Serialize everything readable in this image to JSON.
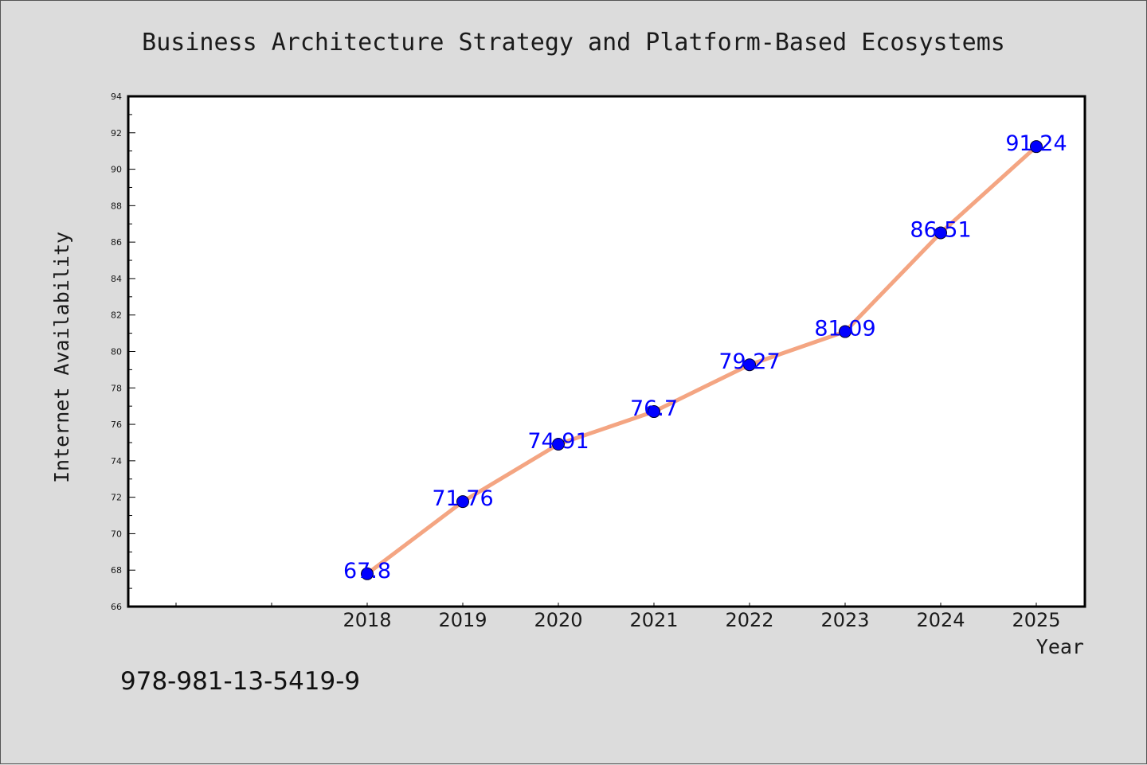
{
  "footnote": "978-981-13-5419-9",
  "colors": {
    "background": "#dcdcdc",
    "plot_background": "#ffffff",
    "line": "#f4a582",
    "marker": "#0000ff",
    "data_label": "#0000ff"
  },
  "chart_data": {
    "type": "line",
    "title": "Business Architecture Strategy and Platform-Based Ecosystems",
    "xlabel": "Year",
    "ylabel": "Internet Availability",
    "x": [
      "2018",
      "2019",
      "2020",
      "2021",
      "2022",
      "2023",
      "2024",
      "2025"
    ],
    "series": [
      {
        "values": [
          67.8,
          71.76,
          74.91,
          76.7,
          79.27,
          81.09,
          86.51,
          91.24
        ],
        "data_labels": [
          "67.8",
          "71.76",
          "74.91",
          "76.7",
          "79.27",
          "81.09",
          "86.51",
          "91.24"
        ]
      }
    ],
    "ylim": [
      66,
      94
    ],
    "yticks": [
      "66",
      "68",
      "70",
      "72",
      "74",
      "76",
      "78",
      "80",
      "82",
      "84",
      "86",
      "88",
      "90",
      "92",
      "94"
    ],
    "grid": false,
    "legend": "none"
  }
}
